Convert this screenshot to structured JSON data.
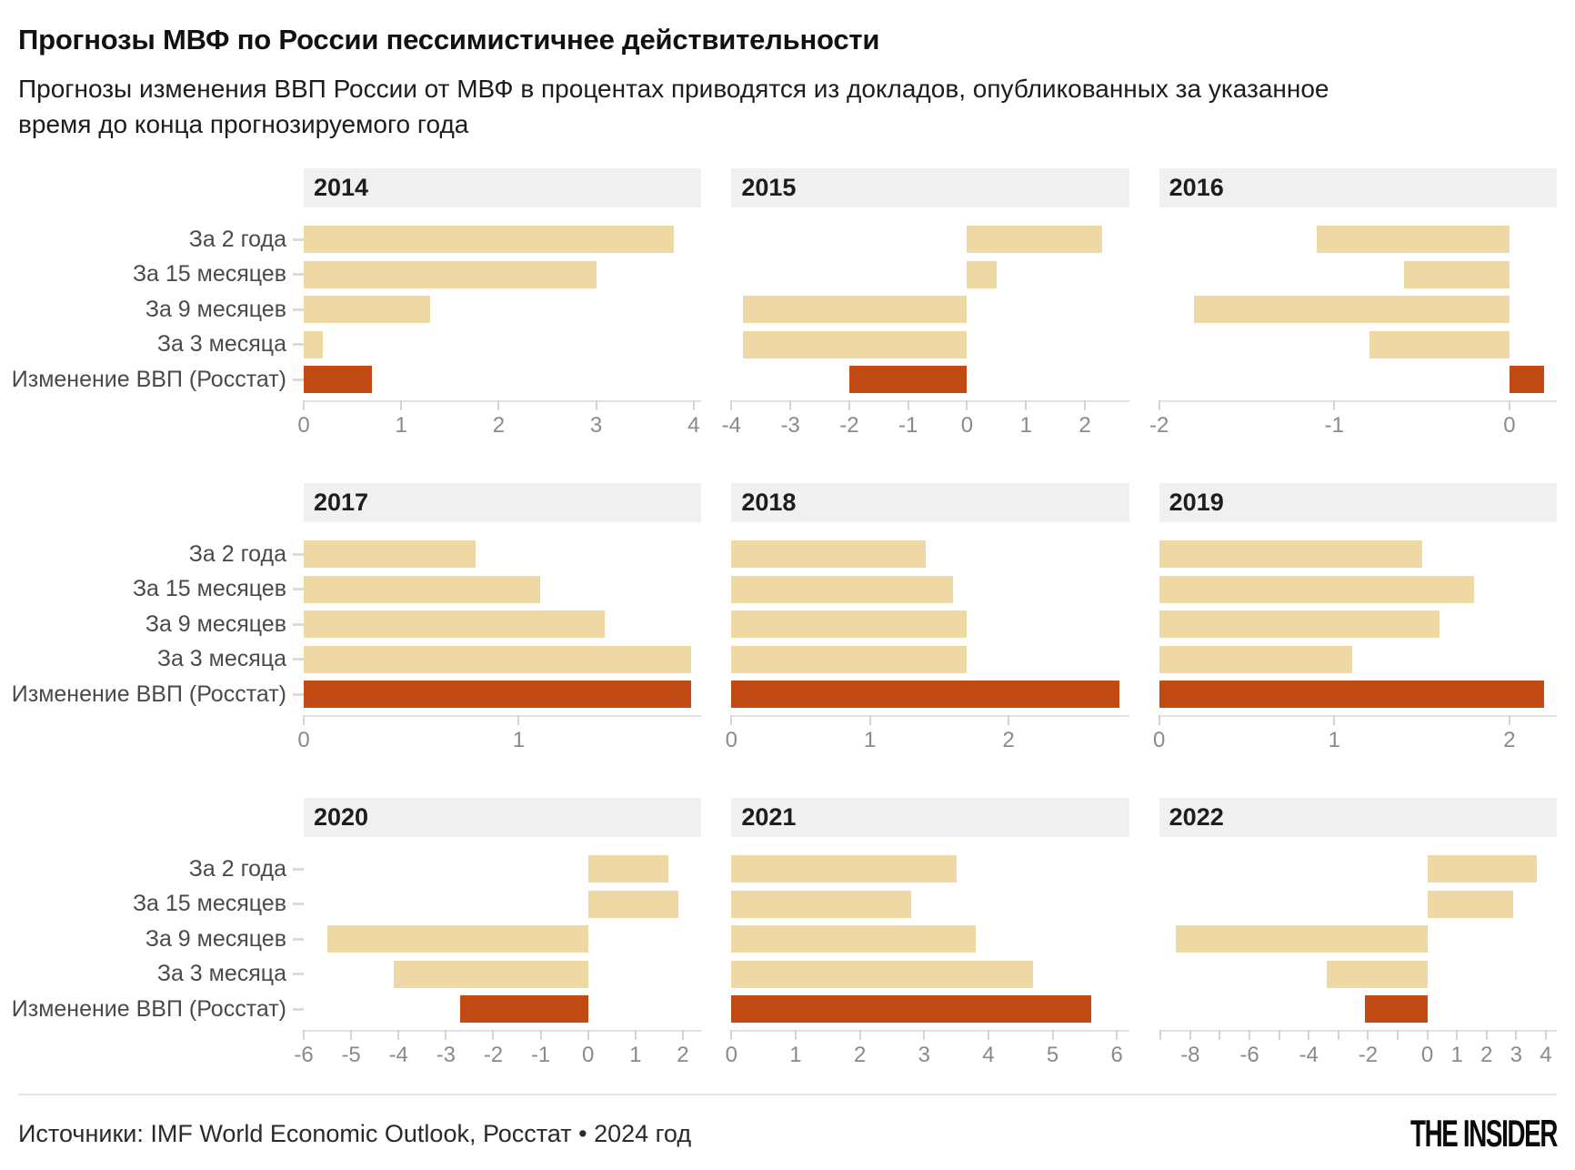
{
  "chart_data": {
    "type": "bar",
    "orientation": "horizontal",
    "title": "Прогнозы МВФ по России пессимистичнее действительности",
    "subtitle": "Прогнозы изменения ВВП России от МВФ в процентах приводятся из докладов, опубликованных за указанное\nвремя до конца прогнозируемого года",
    "unit": "percent GDP change",
    "grid": "off",
    "categories": [
      "За 2 года",
      "За 15 месяцев",
      "За 9 месяцев",
      "За 3 месяца",
      "Изменение ВВП (Росстат)"
    ],
    "panels": [
      {
        "year": "2014",
        "values": [
          3.8,
          3.0,
          1.3,
          0.2,
          0.7
        ],
        "xmin": 0,
        "xmax": 4.08,
        "ticks": [
          0,
          1,
          2,
          3,
          4
        ],
        "tick_labels": [
          "0",
          "1",
          "2",
          "3",
          "4"
        ]
      },
      {
        "year": "2015",
        "values": [
          2.3,
          0.5,
          -3.8,
          -3.8,
          -2.0
        ],
        "xmin": -4,
        "xmax": 2.75,
        "ticks": [
          -4,
          -3,
          -2,
          -1,
          0,
          1,
          2
        ],
        "tick_labels": [
          "-4",
          "-3",
          "-2",
          "-1",
          "0",
          "1",
          "2"
        ]
      },
      {
        "year": "2016",
        "values": [
          -1.1,
          -0.6,
          -1.8,
          -0.8,
          0.2
        ],
        "xmin": -2,
        "xmax": 0.27,
        "ticks": [
          -2,
          -1,
          0
        ],
        "tick_labels": [
          "-2",
          "-1",
          "0"
        ]
      },
      {
        "year": "2017",
        "values": [
          0.8,
          1.1,
          1.4,
          1.8,
          1.8
        ],
        "xmin": 0,
        "xmax": 1.85,
        "ticks": [
          0,
          1
        ],
        "tick_labels": [
          "0",
          "1"
        ]
      },
      {
        "year": "2018",
        "values": [
          1.4,
          1.6,
          1.7,
          1.7,
          2.8
        ],
        "xmin": 0,
        "xmax": 2.87,
        "ticks": [
          0,
          1,
          2
        ],
        "tick_labels": [
          "0",
          "1",
          "2"
        ]
      },
      {
        "year": "2019",
        "values": [
          1.5,
          1.8,
          1.6,
          1.1,
          2.2
        ],
        "xmin": 0,
        "xmax": 2.27,
        "ticks": [
          0,
          1,
          2
        ],
        "tick_labels": [
          "0",
          "1",
          "2"
        ]
      },
      {
        "year": "2020",
        "values": [
          1.7,
          1.9,
          -5.5,
          -4.1,
          -2.7
        ],
        "xmin": -6,
        "xmax": 2.39,
        "ticks": [
          -6,
          -5,
          -4,
          -3,
          -2,
          -1,
          0,
          1,
          2
        ],
        "tick_labels": [
          "-6",
          "-5",
          "-4",
          "-3",
          "-2",
          "-1",
          "0",
          "1",
          "2"
        ]
      },
      {
        "year": "2021",
        "values": [
          3.5,
          2.8,
          3.8,
          4.7,
          5.6
        ],
        "xmin": 0,
        "xmax": 6.19,
        "ticks": [
          0,
          1,
          2,
          3,
          4,
          5,
          6
        ],
        "tick_labels": [
          "0",
          "1",
          "2",
          "3",
          "4",
          "5",
          "6"
        ]
      },
      {
        "year": "2022",
        "values": [
          3.7,
          2.9,
          -8.5,
          -3.4,
          -2.1
        ],
        "xmin": -9.05,
        "xmax": 4.37,
        "ticks": [
          -9,
          -8,
          -7,
          -6,
          -5,
          -4,
          -3,
          -2,
          -1,
          0,
          1,
          2,
          3,
          4
        ],
        "tick_labels": [
          "",
          "-8",
          "",
          "-6",
          "",
          "-4",
          "",
          "-2",
          "",
          "0",
          "1",
          "2",
          "3",
          "4"
        ]
      }
    ]
  },
  "colors": {
    "forecast_bar": "#eed8a4",
    "actual_bar": "#c24a13",
    "panel_header_bg": "#f0f0f0"
  },
  "footer": {
    "sources": "Источники: IMF World Economic Outlook, Росстат • 2024 год",
    "brand": "THE INSIDER"
  }
}
